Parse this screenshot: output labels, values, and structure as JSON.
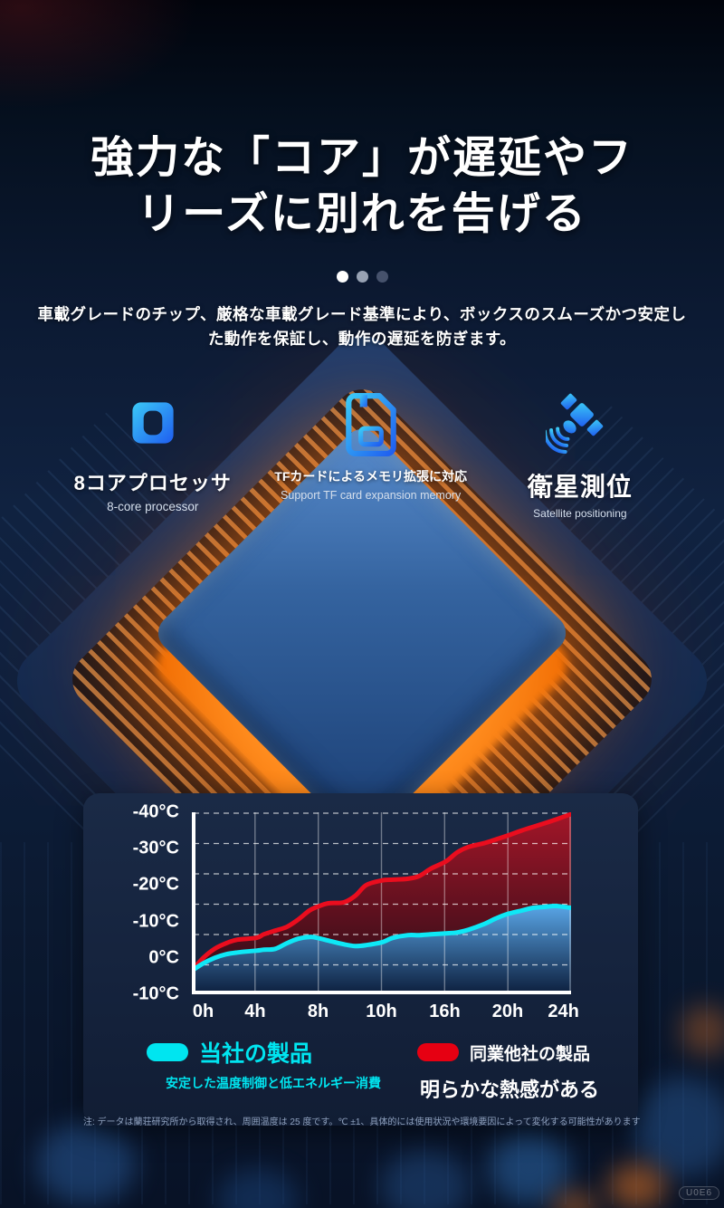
{
  "header": {
    "title_lines": [
      "強力な「コア」が遅延やフ",
      "リーズに別れを告げる"
    ],
    "subtitle_lines": [
      "車載グレードのチップ、厳格な車載グレード基準により、ボックスのスムーズかつ安定し",
      "た動作を保証し、動作の遅延を防ぎます。"
    ]
  },
  "carousel": {
    "dots": [
      {
        "color": "#ffffff",
        "active": true
      },
      {
        "color": "#98a2b3",
        "active": false
      },
      {
        "color": "#46526c",
        "active": false
      }
    ]
  },
  "features": [
    {
      "icon": "cpu-chip-icon",
      "title": "8コアプロセッサ",
      "subtitle": "8-core processor"
    },
    {
      "icon": "tf-card-icon",
      "title": "TFカードによるメモリ拡張に対応",
      "subtitle": "Support TF card expansion memory"
    },
    {
      "icon": "satellite-icon",
      "title": "衛星測位",
      "subtitle": "Satellite positioning"
    }
  ],
  "chart_data": {
    "type": "area",
    "title": "",
    "x_tick_labels": [
      "0h",
      "4h",
      "8h",
      "10h",
      "16h",
      "20h",
      "24h"
    ],
    "y_tick_labels_top_to_bottom": [
      "-40°C",
      "-30°C",
      "-20°C",
      "-10°C",
      "0°C",
      "-10°C"
    ],
    "grid": {
      "horizontal": "dashed white",
      "vertical": "solid translucent white",
      "axes": "solid white left and bottom"
    },
    "value_units": "percent of plot height (promotional graphic; x ticks are non-linear hours, y labels decorative °C)",
    "series": [
      {
        "name": "当社の製品",
        "line_color": "#0ee8f6",
        "fill_top": "#58abee",
        "fill_bottom": "#0a2040",
        "points": [
          [
            0,
            13
          ],
          [
            3,
            17
          ],
          [
            6,
            20
          ],
          [
            9,
            22
          ],
          [
            12,
            23
          ],
          [
            17,
            24
          ],
          [
            19,
            24.5
          ],
          [
            22,
            25
          ],
          [
            25,
            28
          ],
          [
            28,
            30.5
          ],
          [
            31,
            31.5
          ],
          [
            33,
            31
          ],
          [
            36,
            29.5
          ],
          [
            40,
            27.5
          ],
          [
            43,
            26.5
          ],
          [
            46,
            27
          ],
          [
            50,
            28.5
          ],
          [
            53,
            31
          ],
          [
            57,
            32.5
          ],
          [
            60,
            32.5
          ],
          [
            63,
            33
          ],
          [
            67,
            33.5
          ],
          [
            70,
            34
          ],
          [
            73,
            35.5
          ],
          [
            77,
            38.5
          ],
          [
            80,
            41.5
          ],
          [
            83,
            44
          ],
          [
            87,
            46
          ],
          [
            90,
            47.5
          ],
          [
            93,
            48
          ],
          [
            96,
            48.5
          ],
          [
            100,
            47.5
          ]
        ]
      },
      {
        "name": "同業他社の製品",
        "line_color": "#ea0d1e",
        "fill_top": "#a81527",
        "fill_bottom": "#270a13",
        "points": [
          [
            0,
            13
          ],
          [
            3,
            20
          ],
          [
            6,
            25
          ],
          [
            9,
            28
          ],
          [
            12,
            30
          ],
          [
            17,
            31
          ],
          [
            19,
            33
          ],
          [
            22,
            35
          ],
          [
            25,
            37
          ],
          [
            28,
            41
          ],
          [
            31,
            46
          ],
          [
            33,
            48
          ],
          [
            36,
            50
          ],
          [
            40,
            50.5
          ],
          [
            43,
            54
          ],
          [
            46,
            60
          ],
          [
            50,
            62.5
          ],
          [
            53,
            63
          ],
          [
            57,
            63.5
          ],
          [
            60,
            65
          ],
          [
            63,
            69
          ],
          [
            67,
            73
          ],
          [
            70,
            78
          ],
          [
            73,
            81
          ],
          [
            77,
            83
          ],
          [
            80,
            85
          ],
          [
            83,
            87
          ],
          [
            87,
            90
          ],
          [
            90,
            92
          ],
          [
            93,
            94
          ],
          [
            96,
            96
          ],
          [
            100,
            99
          ]
        ]
      }
    ],
    "legend_position": "below chart"
  },
  "legend": {
    "items": [
      {
        "swatch_color": "#00e5f0",
        "label": "当社の製品",
        "label_color": "#00e5f0",
        "caption": "安定した温度制御と低エネルギー消費",
        "caption_color": "#00e5f0"
      },
      {
        "swatch_color": "#e60012",
        "label": "同業他社の製品",
        "label_color": "#ffffff",
        "caption": "明らかな熱感がある",
        "caption_color": "#ffffff"
      }
    ]
  },
  "footnote": "注: データは蘭荘研究所から取得され、周囲温度は 25 度です。℃ ±1、具体的には使用状況や環境要因によって変化する可能性があります",
  "watermark": "U0E6",
  "colors": {
    "accent_cyan": "#00e5f0",
    "accent_red": "#e60012",
    "panel_bg": "#15233d",
    "icon_gradient": [
      "#3bc9f6",
      "#1f5df0"
    ],
    "chip_glow_orange": "#ff8c1e"
  }
}
